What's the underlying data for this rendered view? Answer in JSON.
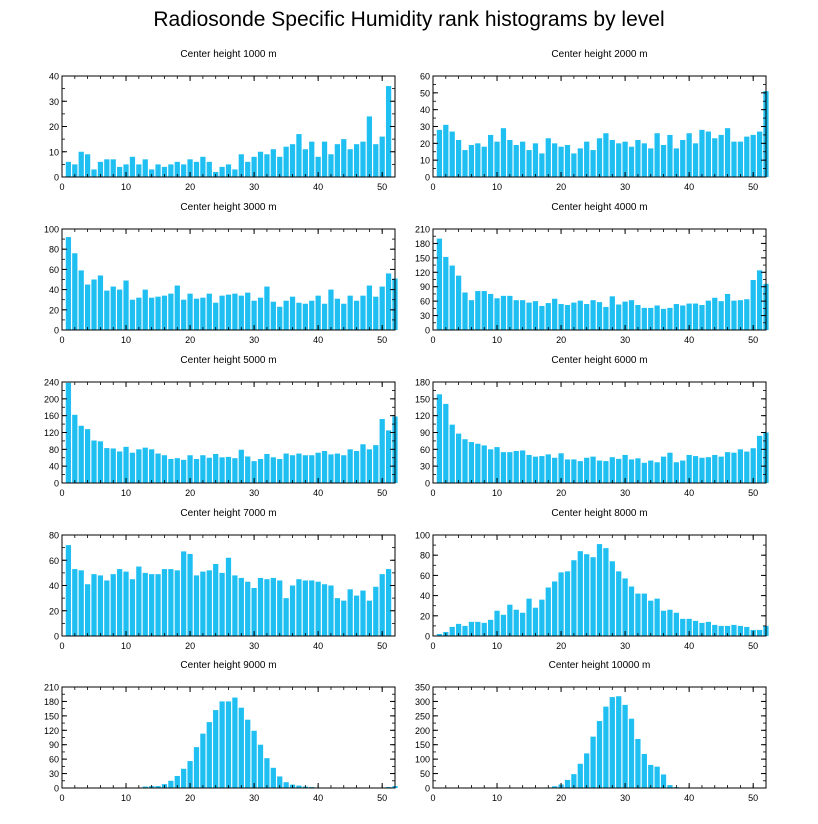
{
  "title": "Radiosonde Specific Humidity rank histograms by level",
  "colors": {
    "bar": "#1fbff2",
    "axis": "#000000"
  },
  "chart_data": [
    {
      "type": "bar",
      "title": "Center height 1000 m",
      "ylim": [
        0,
        40
      ],
      "yticks": [
        0,
        10,
        20,
        30,
        40
      ],
      "xlim": [
        0,
        52
      ],
      "xticks": [
        0,
        10,
        20,
        30,
        40,
        50
      ],
      "values": [
        6,
        5,
        10,
        9,
        3,
        6,
        7,
        7,
        4,
        5,
        8,
        5,
        7,
        3,
        5,
        4,
        5,
        6,
        5,
        7,
        6,
        8,
        6,
        2,
        4,
        5,
        3,
        9,
        6,
        8,
        10,
        9,
        11,
        8,
        12,
        13,
        17,
        11,
        14,
        8,
        14,
        9,
        13,
        15,
        11,
        13,
        14,
        24,
        13,
        16,
        36
      ]
    },
    {
      "type": "bar",
      "title": "Center height 2000 m",
      "ylim": [
        0,
        60
      ],
      "yticks": [
        0,
        10,
        20,
        30,
        40,
        50,
        60
      ],
      "xlim": [
        0,
        52
      ],
      "xticks": [
        0,
        10,
        20,
        30,
        40,
        50
      ],
      "values": [
        28,
        31,
        27,
        22,
        16,
        19,
        20,
        18,
        25,
        21,
        29,
        22,
        19,
        21,
        16,
        20,
        14,
        23,
        20,
        18,
        19,
        14,
        17,
        21,
        16,
        23,
        26,
        22,
        20,
        21,
        18,
        22,
        20,
        17,
        26,
        19,
        25,
        17,
        22,
        26,
        20,
        28,
        27,
        23,
        25,
        29,
        21,
        21,
        24,
        25,
        27,
        51
      ]
    },
    {
      "type": "bar",
      "title": "Center height 3000 m",
      "ylim": [
        0,
        100
      ],
      "yticks": [
        0,
        20,
        40,
        60,
        80,
        100
      ],
      "xlim": [
        0,
        52
      ],
      "xticks": [
        0,
        10,
        20,
        30,
        40,
        50
      ],
      "values": [
        92,
        76,
        59,
        45,
        50,
        54,
        39,
        43,
        40,
        49,
        30,
        32,
        40,
        32,
        33,
        34,
        36,
        44,
        30,
        36,
        31,
        32,
        36,
        27,
        34,
        35,
        36,
        34,
        37,
        29,
        32,
        43,
        28,
        23,
        29,
        33,
        27,
        26,
        29,
        34,
        26,
        40,
        31,
        26,
        34,
        29,
        34,
        44,
        33,
        43,
        56,
        51
      ]
    },
    {
      "type": "bar",
      "title": "Center height 4000 m",
      "ylim": [
        0,
        210
      ],
      "yticks": [
        0,
        30,
        60,
        90,
        120,
        150,
        180,
        210
      ],
      "xlim": [
        0,
        52
      ],
      "xticks": [
        0,
        10,
        20,
        30,
        40,
        50
      ],
      "values": [
        190,
        152,
        134,
        113,
        78,
        62,
        81,
        81,
        75,
        66,
        71,
        71,
        62,
        62,
        57,
        60,
        50,
        56,
        65,
        54,
        52,
        57,
        61,
        54,
        62,
        58,
        48,
        70,
        53,
        59,
        62,
        52,
        46,
        46,
        51,
        44,
        46,
        54,
        51,
        55,
        55,
        52,
        61,
        67,
        60,
        75,
        61,
        62,
        64,
        104,
        124,
        96
      ]
    },
    {
      "type": "bar",
      "title": "Center height 5000 m",
      "ylim": [
        0,
        240
      ],
      "yticks": [
        0,
        40,
        80,
        120,
        160,
        200,
        240
      ],
      "xlim": [
        0,
        52
      ],
      "xticks": [
        0,
        10,
        20,
        30,
        40,
        50
      ],
      "values": [
        238,
        162,
        136,
        128,
        101,
        99,
        83,
        82,
        75,
        86,
        72,
        80,
        84,
        80,
        70,
        66,
        57,
        59,
        55,
        66,
        57,
        66,
        60,
        69,
        61,
        62,
        59,
        79,
        63,
        52,
        57,
        69,
        61,
        57,
        70,
        66,
        70,
        66,
        66,
        72,
        76,
        68,
        70,
        66,
        80,
        76,
        92,
        80,
        90,
        152,
        125,
        158
      ]
    },
    {
      "type": "bar",
      "title": "Center height 6000 m",
      "ylim": [
        0,
        180
      ],
      "yticks": [
        0,
        30,
        60,
        90,
        120,
        150,
        180
      ],
      "xlim": [
        0,
        52
      ],
      "xticks": [
        0,
        10,
        20,
        30,
        40,
        50
      ],
      "values": [
        158,
        141,
        104,
        88,
        78,
        73,
        70,
        67,
        60,
        64,
        55,
        55,
        57,
        58,
        50,
        47,
        48,
        51,
        45,
        53,
        42,
        42,
        39,
        45,
        47,
        40,
        39,
        46,
        43,
        50,
        42,
        44,
        36,
        40,
        37,
        47,
        54,
        37,
        40,
        50,
        48,
        45,
        46,
        50,
        47,
        55,
        54,
        60,
        56,
        62,
        84,
        90
      ]
    },
    {
      "type": "bar",
      "title": "Center height 7000 m",
      "ylim": [
        0,
        80
      ],
      "yticks": [
        0,
        20,
        40,
        60,
        80
      ],
      "xlim": [
        0,
        52
      ],
      "xticks": [
        0,
        10,
        20,
        30,
        40,
        50
      ],
      "values": [
        72,
        53,
        52,
        41,
        49,
        48,
        44,
        49,
        53,
        51,
        45,
        55,
        50,
        49,
        49,
        53,
        53,
        52,
        67,
        65,
        48,
        51,
        52,
        57,
        50,
        62,
        48,
        46,
        43,
        38,
        46,
        45,
        46,
        44,
        30,
        40,
        45,
        44,
        44,
        43,
        41,
        40,
        30,
        28,
        37,
        32,
        36,
        28,
        39,
        49,
        53
      ]
    },
    {
      "type": "bar",
      "title": "Center height 8000 m",
      "ylim": [
        0,
        100
      ],
      "yticks": [
        0,
        20,
        40,
        60,
        80,
        100
      ],
      "xlim": [
        0,
        52
      ],
      "xticks": [
        0,
        10,
        20,
        30,
        40,
        50
      ],
      "values": [
        2,
        4,
        9,
        12,
        10,
        14,
        14,
        13,
        16,
        25,
        21,
        31,
        26,
        23,
        37,
        28,
        36,
        48,
        54,
        63,
        64,
        75,
        84,
        81,
        78,
        91,
        87,
        74,
        64,
        57,
        49,
        42,
        42,
        35,
        37,
        25,
        26,
        23,
        17,
        17,
        15,
        13,
        14,
        11,
        10,
        10,
        11,
        10,
        9,
        6,
        6,
        10
      ]
    },
    {
      "type": "bar",
      "title": "Center height 9000 m",
      "ylim": [
        0,
        210
      ],
      "yticks": [
        0,
        30,
        60,
        90,
        120,
        150,
        180,
        210
      ],
      "xlim": [
        0,
        52
      ],
      "xticks": [
        0,
        10,
        20,
        30,
        40,
        50
      ],
      "values": [
        0,
        0,
        0,
        0,
        0,
        0,
        0,
        0,
        0,
        0,
        0,
        0,
        3,
        4,
        4,
        8,
        15,
        25,
        40,
        56,
        85,
        113,
        137,
        162,
        180,
        180,
        188,
        167,
        142,
        119,
        90,
        62,
        42,
        24,
        12,
        7,
        5,
        3,
        2,
        1,
        1,
        1,
        1,
        0,
        0,
        0,
        0,
        0,
        0,
        0,
        2,
        4
      ]
    },
    {
      "type": "bar",
      "title": "Center height 10000 m",
      "ylim": [
        0,
        350
      ],
      "yticks": [
        0,
        50,
        100,
        150,
        200,
        250,
        300,
        350
      ],
      "xlim": [
        0,
        52
      ],
      "xticks": [
        0,
        10,
        20,
        30,
        40,
        50
      ],
      "values": [
        0,
        0,
        0,
        0,
        0,
        0,
        0,
        0,
        0,
        0,
        0,
        0,
        0,
        0,
        0,
        0,
        0,
        2,
        6,
        12,
        28,
        48,
        84,
        120,
        178,
        232,
        282,
        315,
        318,
        288,
        240,
        170,
        118,
        80,
        74,
        47,
        10,
        3,
        1,
        0,
        0,
        0,
        0,
        0,
        0,
        0,
        0,
        0,
        0,
        0,
        0,
        0
      ]
    }
  ]
}
